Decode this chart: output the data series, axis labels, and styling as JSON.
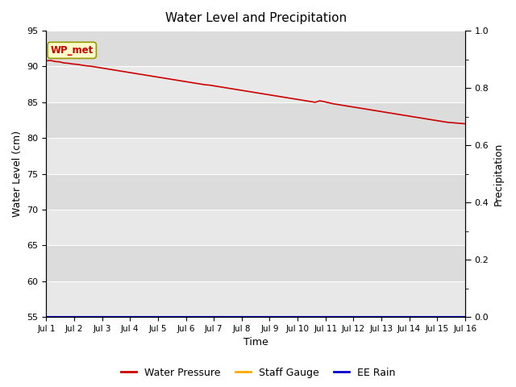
{
  "title": "Water Level and Precipitation",
  "xlabel": "Time",
  "ylabel_left": "Water Level (cm)",
  "ylabel_right": "Precipitation",
  "ylim_left": [
    55,
    95
  ],
  "ylim_right": [
    0.0,
    1.0
  ],
  "yticks_left": [
    55,
    60,
    65,
    70,
    75,
    80,
    85,
    90,
    95
  ],
  "yticks_right": [
    0.0,
    0.2,
    0.4,
    0.6,
    0.8,
    1.0
  ],
  "x_labels": [
    "Jul 1",
    "Jul 2",
    "Jul 3",
    "Jul 4",
    "Jul 5",
    "Jul 6",
    "Jul 7",
    "Jul 8",
    "Jul 9",
    "Jul 10",
    "Jul 11",
    "Jul 12",
    "Jul 13",
    "Jul 14",
    "Jul 15",
    "Jul 16"
  ],
  "water_pressure_color": "#cc0000",
  "staff_gauge_color": "#ffaa00",
  "ee_rain_color": "#0000cc",
  "annotation_text": "WP_met",
  "annotation_bg": "#ffffcc",
  "annotation_border": "#999900",
  "annotation_text_color": "#cc0000",
  "bg_color_dark": "#dcdcdc",
  "bg_color_light": "#e8e8e8",
  "grid_color": "#ffffff",
  "water_pressure_values": [
    90.8,
    90.85,
    90.7,
    90.65,
    90.5,
    90.45,
    90.35,
    90.3,
    90.2,
    90.1,
    90.05,
    89.95,
    89.85,
    89.75,
    89.65,
    89.55,
    89.45,
    89.35,
    89.25,
    89.15,
    89.05,
    88.95,
    88.85,
    88.75,
    88.65,
    88.55,
    88.45,
    88.35,
    88.25,
    88.15,
    88.05,
    87.95,
    87.85,
    87.75,
    87.65,
    87.55,
    87.45,
    87.4,
    87.3,
    87.2,
    87.1,
    87.0,
    86.9,
    86.8,
    86.7,
    86.6,
    86.5,
    86.4,
    86.3,
    86.2,
    86.1,
    86.0,
    85.9,
    85.8,
    85.7,
    85.6,
    85.5,
    85.4,
    85.3,
    85.2,
    85.1,
    85.0,
    85.2,
    85.1,
    84.95,
    84.8,
    84.7,
    84.6,
    84.5,
    84.4,
    84.3,
    84.2,
    84.1,
    84.0,
    83.9,
    83.8,
    83.7,
    83.6,
    83.5,
    83.4,
    83.3,
    83.2,
    83.1,
    83.0,
    82.9,
    82.8,
    82.7,
    82.6,
    82.5,
    82.4,
    82.3,
    82.2,
    82.15,
    82.1,
    82.05,
    82.0
  ],
  "legend_labels": [
    "Water Pressure",
    "Staff Gauge",
    "EE Rain"
  ]
}
